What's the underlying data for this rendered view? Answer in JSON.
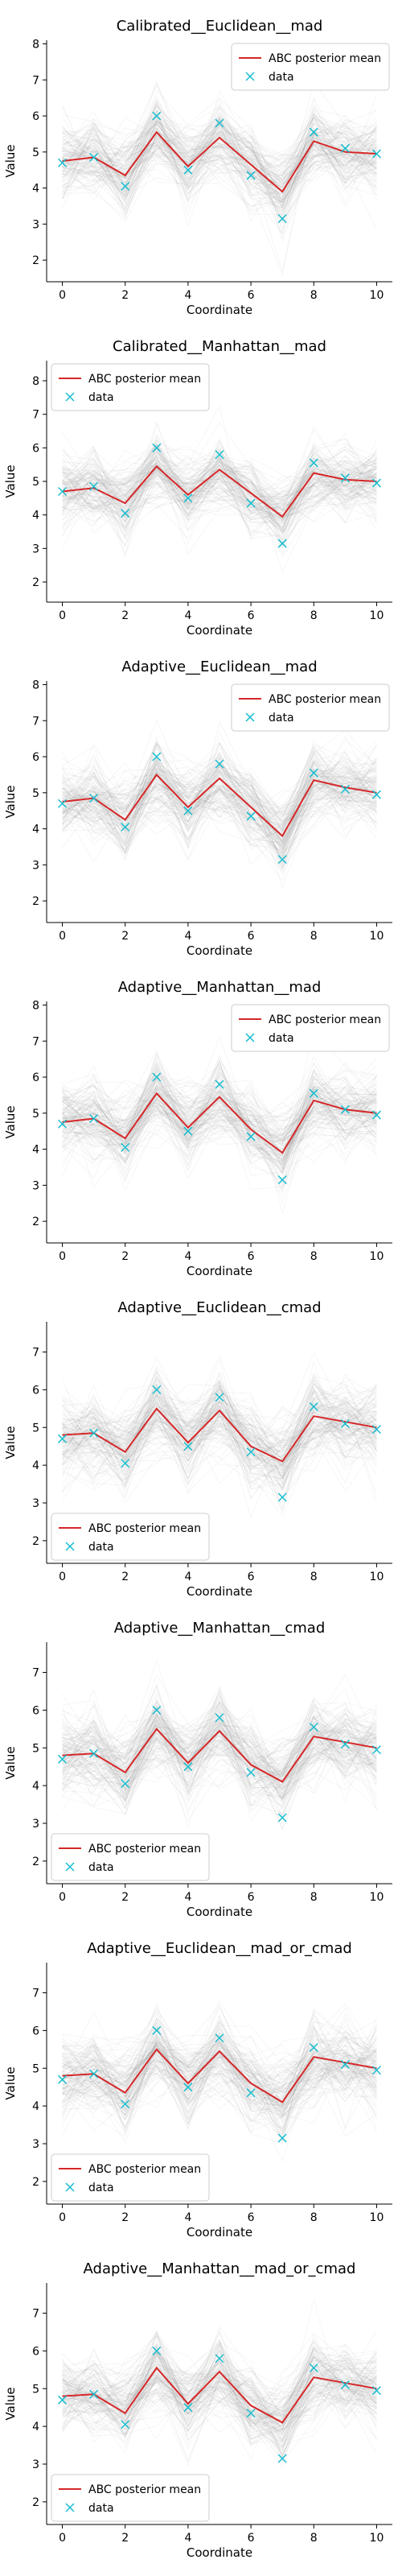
{
  "figure": {
    "xlabel": "Coordinate",
    "ylabel": "Value",
    "legend": {
      "mean_label": "ABC posterior mean",
      "data_label": "data"
    },
    "colors": {
      "mean": "#d62728",
      "data": "#17becf",
      "samples": "#808080"
    },
    "x_ticks": [
      0,
      2,
      4,
      6,
      8,
      10
    ],
    "y_ticks": [
      2,
      3,
      4,
      5,
      6,
      7,
      8
    ]
  },
  "data_points": {
    "x": [
      0,
      1,
      2,
      3,
      4,
      5,
      6,
      7,
      8,
      9,
      10
    ],
    "y": [
      4.7,
      4.85,
      4.05,
      6.0,
      4.5,
      5.8,
      4.35,
      3.15,
      5.55,
      5.1,
      4.95
    ]
  },
  "chart_data": [
    {
      "type": "line",
      "title": "Calibrated__Euclidean__mad",
      "ylim": [
        1.4,
        8.1
      ],
      "legend_position": "top-right",
      "x": [
        0,
        1,
        2,
        3,
        4,
        5,
        6,
        7,
        8,
        9,
        10
      ],
      "series": [
        {
          "name": "ABC posterior mean",
          "values": [
            4.75,
            4.85,
            4.35,
            5.55,
            4.6,
            5.4,
            4.65,
            3.9,
            5.3,
            5.0,
            4.95
          ]
        }
      ]
    },
    {
      "type": "line",
      "title": "Calibrated__Manhattan__mad",
      "ylim": [
        1.4,
        8.6
      ],
      "legend_position": "top-left",
      "x": [
        0,
        1,
        2,
        3,
        4,
        5,
        6,
        7,
        8,
        9,
        10
      ],
      "series": [
        {
          "name": "ABC posterior mean",
          "values": [
            4.7,
            4.8,
            4.35,
            5.45,
            4.6,
            5.35,
            4.65,
            3.95,
            5.25,
            5.05,
            5.0
          ]
        }
      ]
    },
    {
      "type": "line",
      "title": "Adaptive__Euclidean__mad",
      "ylim": [
        1.4,
        8.1
      ],
      "legend_position": "top-right",
      "x": [
        0,
        1,
        2,
        3,
        4,
        5,
        6,
        7,
        8,
        9,
        10
      ],
      "series": [
        {
          "name": "ABC posterior mean",
          "values": [
            4.75,
            4.85,
            4.25,
            5.5,
            4.6,
            5.4,
            4.6,
            3.8,
            5.35,
            5.15,
            5.0
          ]
        }
      ]
    },
    {
      "type": "line",
      "title": "Adaptive__Manhattan__mad",
      "ylim": [
        1.4,
        8.1
      ],
      "legend_position": "top-right",
      "x": [
        0,
        1,
        2,
        3,
        4,
        5,
        6,
        7,
        8,
        9,
        10
      ],
      "series": [
        {
          "name": "ABC posterior mean",
          "values": [
            4.75,
            4.85,
            4.3,
            5.55,
            4.6,
            5.45,
            4.55,
            3.9,
            5.35,
            5.1,
            5.0
          ]
        }
      ]
    },
    {
      "type": "line",
      "title": "Adaptive__Euclidean__cmad",
      "ylim": [
        1.4,
        7.8
      ],
      "legend_position": "bottom-left",
      "x": [
        0,
        1,
        2,
        3,
        4,
        5,
        6,
        7,
        8,
        9,
        10
      ],
      "series": [
        {
          "name": "ABC posterior mean",
          "values": [
            4.8,
            4.85,
            4.35,
            5.5,
            4.6,
            5.45,
            4.5,
            4.1,
            5.3,
            5.15,
            5.0
          ]
        }
      ]
    },
    {
      "type": "line",
      "title": "Adaptive__Manhattan__cmad",
      "ylim": [
        1.4,
        7.8
      ],
      "legend_position": "bottom-left",
      "x": [
        0,
        1,
        2,
        3,
        4,
        5,
        6,
        7,
        8,
        9,
        10
      ],
      "series": [
        {
          "name": "ABC posterior mean",
          "values": [
            4.8,
            4.85,
            4.35,
            5.5,
            4.6,
            5.45,
            4.55,
            4.1,
            5.3,
            5.15,
            5.0
          ]
        }
      ]
    },
    {
      "type": "line",
      "title": "Adaptive__Euclidean__mad_or_cmad",
      "ylim": [
        1.4,
        7.8
      ],
      "legend_position": "bottom-left",
      "x": [
        0,
        1,
        2,
        3,
        4,
        5,
        6,
        7,
        8,
        9,
        10
      ],
      "series": [
        {
          "name": "ABC posterior mean",
          "values": [
            4.8,
            4.85,
            4.35,
            5.5,
            4.6,
            5.45,
            4.6,
            4.1,
            5.3,
            5.15,
            5.0
          ]
        }
      ]
    },
    {
      "type": "line",
      "title": "Adaptive__Manhattan__mad_or_cmad",
      "ylim": [
        1.4,
        7.8
      ],
      "legend_position": "bottom-left",
      "x": [
        0,
        1,
        2,
        3,
        4,
        5,
        6,
        7,
        8,
        9,
        10
      ],
      "series": [
        {
          "name": "ABC posterior mean",
          "values": [
            4.8,
            4.85,
            4.35,
            5.55,
            4.6,
            5.45,
            4.55,
            4.1,
            5.3,
            5.15,
            5.0
          ]
        }
      ]
    }
  ]
}
